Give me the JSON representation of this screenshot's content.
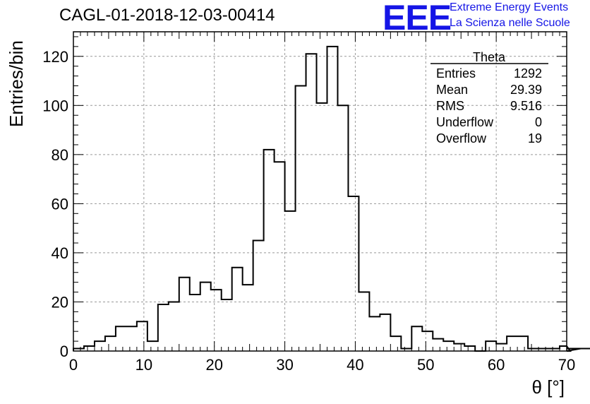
{
  "header": {
    "run_title": "CAGL-01-2018-12-03-00414",
    "logo_text": "EEE",
    "logo_line1": "Extreme Energy Events",
    "logo_line2": "La Scienza nelle Scuole"
  },
  "stats_box": {
    "title": "Theta",
    "rows": [
      {
        "label": "Entries",
        "value": "1292"
      },
      {
        "label": "Mean",
        "value": "29.39"
      },
      {
        "label": "RMS",
        "value": "9.516"
      },
      {
        "label": "Underflow",
        "value": "0"
      },
      {
        "label": "Overflow",
        "value": "19"
      }
    ]
  },
  "chart_data": {
    "type": "bar",
    "histogram": true,
    "xlabel": "θ [°]",
    "ylabel": "Entries/bin",
    "xlim": [
      0,
      70
    ],
    "ylim": [
      0,
      130
    ],
    "bin_width": 1.5,
    "x_ticks": [
      0,
      10,
      20,
      30,
      40,
      50,
      60,
      70
    ],
    "y_ticks": [
      0,
      20,
      40,
      60,
      80,
      100,
      120
    ],
    "grid": true,
    "values": [
      1,
      2,
      4,
      6,
      10,
      10,
      12,
      4,
      19,
      20,
      30,
      23,
      28,
      25,
      21,
      34,
      27,
      45,
      82,
      77,
      57,
      108,
      121,
      101,
      124,
      100,
      63,
      24,
      14,
      15,
      6,
      1,
      10,
      8,
      5,
      4,
      3,
      2,
      0,
      4,
      3,
      6,
      6,
      1,
      1,
      1,
      2,
      0,
      1,
      1
    ],
    "line_color": "#000000",
    "grid_color": "#999999"
  }
}
